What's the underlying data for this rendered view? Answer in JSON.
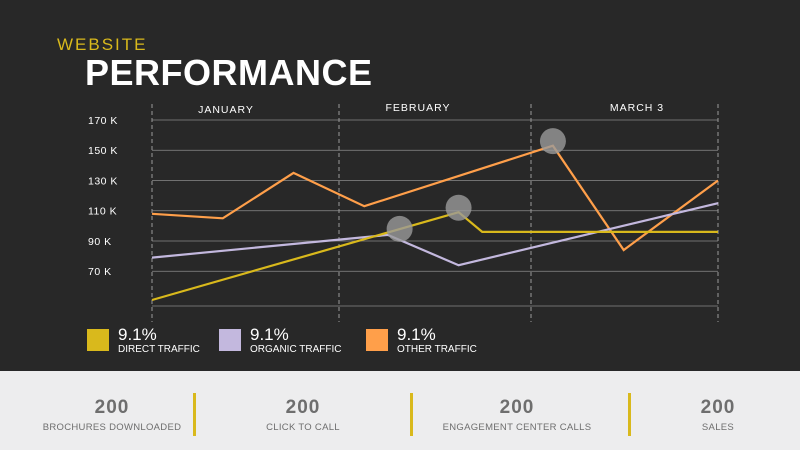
{
  "header": {
    "kicker": "WEBSITE",
    "title": "PERFORMANCE"
  },
  "colors": {
    "direct": "#d9b91c",
    "organic": "#c3b8de",
    "other": "#ff9f4a",
    "accent": "#d9b91c"
  },
  "chart_data": {
    "type": "line",
    "title": "",
    "xlabel": "",
    "ylabel": "",
    "months": [
      "JANUARY",
      "FEBRUARY",
      "MARCH 3"
    ],
    "y_ticks": [
      {
        "value": 170,
        "label": "170 K"
      },
      {
        "value": 150,
        "label": "150 K"
      },
      {
        "value": 130,
        "label": "130 K"
      },
      {
        "value": 110,
        "label": "110 K"
      },
      {
        "value": 90,
        "label": "90 K"
      },
      {
        "value": 70,
        "label": "70 K"
      }
    ],
    "ylim": [
      47,
      170
    ],
    "xlim": [
      0,
      24
    ],
    "grid": true,
    "series": [
      {
        "key": "other",
        "points": [
          [
            0,
            108
          ],
          [
            3,
            105
          ],
          [
            6,
            135
          ],
          [
            9,
            113
          ],
          [
            17,
            153
          ],
          [
            20,
            84
          ],
          [
            24,
            130
          ]
        ]
      },
      {
        "key": "organic",
        "points": [
          [
            0,
            79
          ],
          [
            10,
            94
          ],
          [
            13,
            74
          ],
          [
            24,
            115
          ]
        ]
      },
      {
        "key": "direct",
        "points": [
          [
            0,
            51
          ],
          [
            13,
            109
          ],
          [
            14,
            96
          ],
          [
            24,
            96
          ]
        ]
      }
    ],
    "highlights": [
      [
        10.5,
        98
      ],
      [
        13,
        112
      ],
      [
        17,
        156
      ]
    ]
  },
  "legend": [
    {
      "key": "direct",
      "percent": "9.1%",
      "label": "DIRECT TRAFFIC"
    },
    {
      "key": "organic",
      "percent": "9.1%",
      "label": "ORGANIC TRAFFIC"
    },
    {
      "key": "other",
      "percent": "9.1%",
      "label": "OTHER TRAFFIC"
    }
  ],
  "stats": [
    {
      "value": "200",
      "label": "BROCHURES DOWNLOADED"
    },
    {
      "value": "200",
      "label": "CLICK TO CALL"
    },
    {
      "value": "200",
      "label": "ENGAGEMENT CENTER CALLS"
    },
    {
      "value": "200",
      "label": "SALES"
    }
  ]
}
